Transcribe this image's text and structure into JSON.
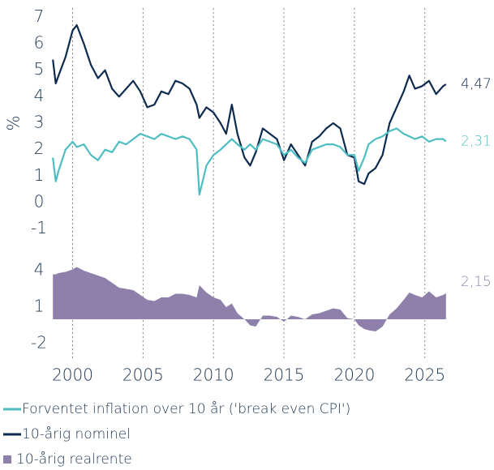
{
  "chart_data": {
    "type": "line",
    "ylabel": "%",
    "xlim": [
      1998.3,
      2026.8
    ],
    "xticks": [
      2000,
      2005,
      2010,
      2015,
      2020,
      2025
    ],
    "ylim": [
      -1.5,
      7.5
    ],
    "yticks": [
      -1,
      0,
      1,
      2,
      3,
      4,
      5,
      6,
      7
    ],
    "y2lim": [
      -3,
      5
    ],
    "y2ticks": [
      4,
      1,
      -2
    ],
    "grid": "x",
    "legend": "bottom",
    "x": [
      1998.6,
      1998.8,
      1999.0,
      1999.5,
      2000.0,
      2000.3,
      2000.8,
      2001.3,
      2001.8,
      2002.3,
      2002.8,
      2003.3,
      2003.8,
      2004.3,
      2004.8,
      2005.3,
      2005.8,
      2006.3,
      2006.8,
      2007.3,
      2007.8,
      2008.3,
      2008.8,
      2009.0,
      2009.5,
      2010.0,
      2010.5,
      2010.9,
      2011.3,
      2011.7,
      2012.2,
      2012.6,
      2013.0,
      2013.5,
      2014.0,
      2014.5,
      2015.0,
      2015.5,
      2016.0,
      2016.5,
      2017.0,
      2017.5,
      2018.0,
      2018.5,
      2019.0,
      2019.5,
      2020.0,
      2020.3,
      2020.7,
      2021.0,
      2021.5,
      2022.0,
      2022.5,
      2023.0,
      2023.5,
      2023.9,
      2024.3,
      2024.8,
      2025.3,
      2025.8,
      2026.3,
      2026.5
    ],
    "series": [
      {
        "name": "Forventet inflation over 10 år ('break even CPI')",
        "color": "#4dbdc1",
        "kind": "line",
        "end_label": "2,31",
        "values": [
          1.7,
          0.8,
          1.2,
          2.0,
          2.3,
          2.1,
          2.2,
          1.8,
          1.6,
          2.0,
          1.9,
          2.3,
          2.2,
          2.4,
          2.6,
          2.5,
          2.4,
          2.6,
          2.5,
          2.4,
          2.5,
          2.4,
          2.0,
          0.3,
          1.4,
          1.8,
          2.0,
          2.2,
          2.4,
          2.2,
          2.0,
          2.2,
          2.0,
          2.4,
          2.3,
          2.2,
          1.8,
          2.0,
          1.7,
          1.5,
          2.0,
          2.1,
          2.2,
          2.2,
          2.1,
          1.8,
          1.8,
          1.2,
          1.7,
          2.2,
          2.4,
          2.5,
          2.7,
          2.8,
          2.6,
          2.5,
          2.4,
          2.5,
          2.3,
          2.4,
          2.4,
          2.31
        ]
      },
      {
        "name": "10-årig nominel",
        "color": "#0d2b4e",
        "kind": "line",
        "end_label": "4,47",
        "values": [
          5.4,
          4.5,
          4.8,
          5.5,
          6.5,
          6.7,
          6.0,
          5.2,
          4.7,
          5.0,
          4.3,
          4.0,
          4.3,
          4.6,
          4.2,
          3.6,
          3.7,
          4.2,
          4.1,
          4.6,
          4.5,
          4.3,
          3.7,
          3.2,
          3.6,
          3.4,
          3.0,
          2.6,
          3.7,
          2.6,
          1.7,
          1.4,
          1.9,
          2.8,
          2.6,
          2.4,
          1.6,
          2.2,
          1.8,
          1.4,
          2.3,
          2.5,
          2.8,
          3.0,
          2.8,
          1.8,
          1.7,
          0.8,
          0.7,
          1.1,
          1.3,
          1.8,
          3.0,
          3.6,
          4.2,
          4.8,
          4.3,
          4.4,
          4.6,
          4.1,
          4.4,
          4.47
        ]
      },
      {
        "name": "10-årig realrente",
        "color": "#8e7fab",
        "kind": "area",
        "axis": "y2",
        "end_label": "2,15",
        "values": [
          3.7,
          3.7,
          3.8,
          3.9,
          4.1,
          4.3,
          4.0,
          3.8,
          3.6,
          3.4,
          3.0,
          2.6,
          2.5,
          2.4,
          2.0,
          1.6,
          1.5,
          1.8,
          1.8,
          2.1,
          2.1,
          2.0,
          1.8,
          2.8,
          2.2,
          1.8,
          1.6,
          1.0,
          1.3,
          0.5,
          0.0,
          -0.5,
          -0.6,
          0.3,
          0.3,
          0.2,
          -0.2,
          0.3,
          0.2,
          0.0,
          0.4,
          0.5,
          0.7,
          0.9,
          0.8,
          0.1,
          0.0,
          -0.5,
          -0.8,
          -0.9,
          -1.0,
          -0.6,
          0.4,
          0.9,
          1.6,
          2.2,
          2.0,
          1.8,
          2.3,
          1.8,
          2.0,
          2.15
        ]
      }
    ]
  }
}
